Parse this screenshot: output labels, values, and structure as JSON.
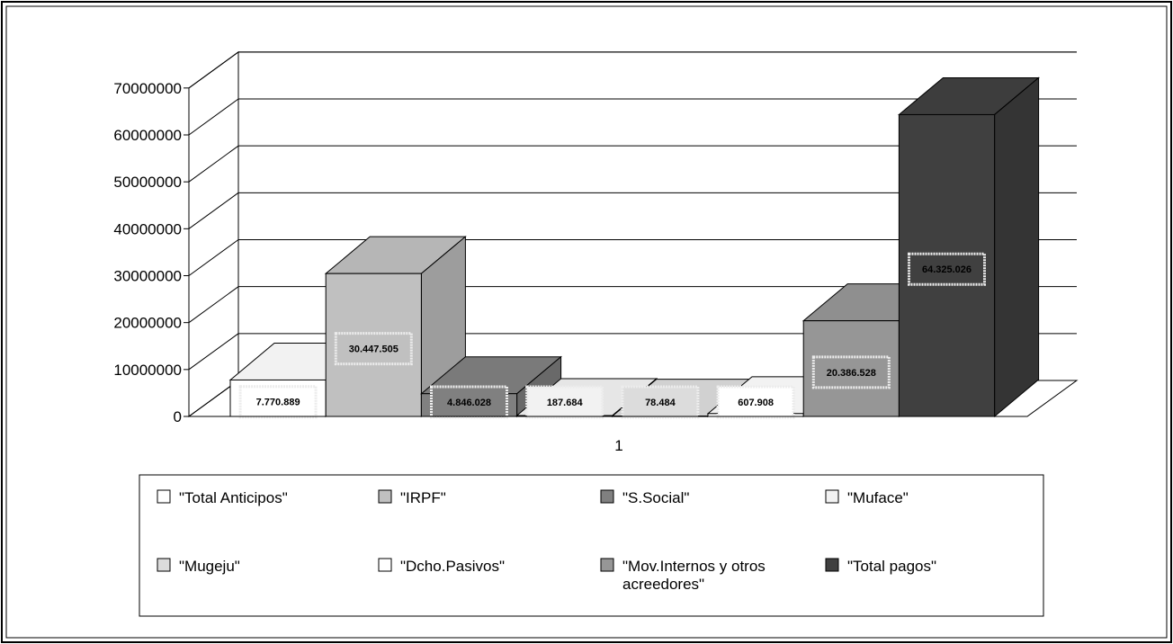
{
  "chart_data": {
    "type": "bar",
    "title": "",
    "xlabel": "",
    "ylabel": "",
    "categories": [
      "1"
    ],
    "ylim": [
      0,
      70000000
    ],
    "yticks": [
      "0",
      "10000000",
      "20000000",
      "30000000",
      "40000000",
      "50000000",
      "60000000",
      "70000000"
    ],
    "grid": true,
    "legend_position": "bottom",
    "series": [
      {
        "name": "\"Total Anticipos\"",
        "values": [
          7770889
        ],
        "label": "7.770.889",
        "color": "#ffffff"
      },
      {
        "name": "\"IRPF\"",
        "values": [
          30447505
        ],
        "label": "30.447.505",
        "color": "#c0c0c0"
      },
      {
        "name": "\"S.Social\"",
        "values": [
          4846028
        ],
        "label": "4.846.028",
        "color": "#808080"
      },
      {
        "name": "\"Muface\"",
        "values": [
          187684
        ],
        "label": "187.684",
        "color": "#f2f2f2"
      },
      {
        "name": "\"Mugeju\"",
        "values": [
          78484
        ],
        "label": "78.484",
        "color": "#dcdcdc"
      },
      {
        "name": "\"Dcho.Pasivos\"",
        "values": [
          607908
        ],
        "label": "607.908",
        "color": "#ffffff"
      },
      {
        "name": "\"Mov.Internos y otros acreedores\"",
        "values": [
          20386528
        ],
        "label": "20.386.528",
        "color": "#969696"
      },
      {
        "name": "\"Total pagos\"",
        "values": [
          64325026
        ],
        "label": "64.325.026",
        "color": "#404040"
      }
    ]
  }
}
